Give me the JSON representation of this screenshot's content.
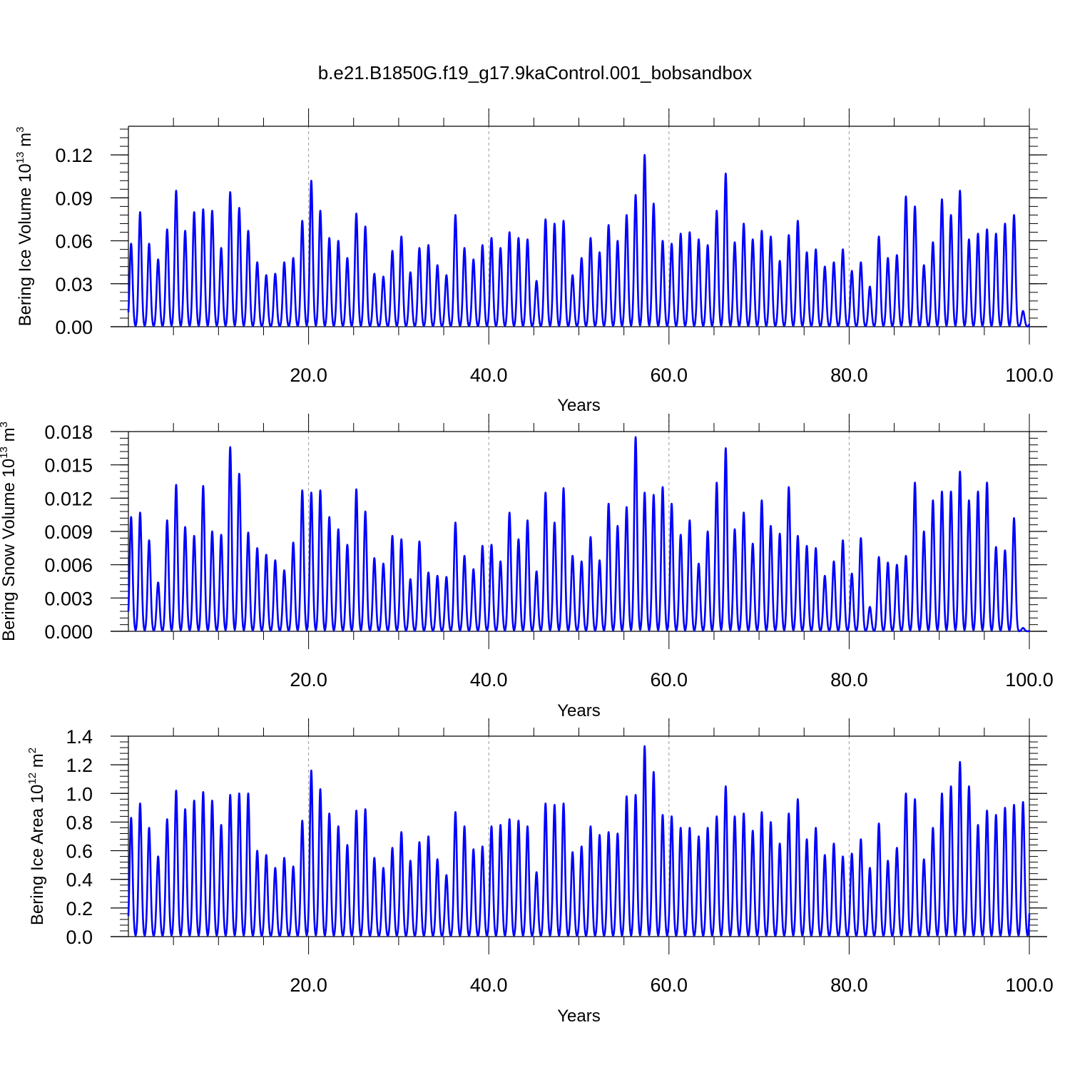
{
  "figure": {
    "title": "b.e21.B1850G.f19_g17.9kaControl.001_bobsandbox",
    "line_color": "#0000ff"
  },
  "chart_data": [
    {
      "type": "line",
      "ylabel": "Bering Ice Volume",
      "ylabel_unit_base": "10",
      "ylabel_unit_exp": "13",
      "ylabel_unit": "m",
      "ylabel_unit_sup": "3",
      "xlabel": "Years",
      "xlim": [
        0,
        100
      ],
      "ylim": [
        0,
        0.14
      ],
      "x_ticks": [
        "20.0",
        "40.0",
        "60.0",
        "80.0",
        "100.0"
      ],
      "y_ticks": [
        "0.00",
        "0.03",
        "0.06",
        "0.09",
        "0.12"
      ],
      "grid_x": [
        20,
        40,
        60,
        80
      ],
      "series": [
        {
          "x": [
            0.3,
            1.3,
            2.3,
            3.3,
            4.3,
            5.3,
            6.3,
            7.3,
            8.3,
            9.3,
            10.3,
            11.3,
            12.3,
            13.3,
            14.3,
            15.3,
            16.3,
            17.3,
            18.3,
            19.3,
            20.3,
            21.3,
            22.3,
            23.3,
            24.3,
            25.3,
            26.3,
            27.3,
            28.3,
            29.3,
            30.3,
            31.3,
            32.3,
            33.3,
            34.3,
            35.3,
            36.3,
            37.3,
            38.3,
            39.3,
            40.3,
            41.3,
            42.3,
            43.3,
            44.3,
            45.3,
            46.3,
            47.3,
            48.3,
            49.3,
            50.3,
            51.3,
            52.3,
            53.3,
            54.3,
            55.3,
            56.3,
            57.3,
            58.3,
            59.3,
            60.3,
            61.3,
            62.3,
            63.3,
            64.3,
            65.3,
            66.3,
            67.3,
            68.3,
            69.3,
            70.3,
            71.3,
            72.3,
            73.3,
            74.3,
            75.3,
            76.3,
            77.3,
            78.3,
            79.3,
            80.3,
            81.3,
            82.3,
            83.3,
            84.3,
            85.3,
            86.3,
            87.3,
            88.3,
            89.3,
            90.3,
            91.3,
            92.3,
            93.3,
            94.3,
            95.3,
            96.3,
            97.3,
            98.3,
            99.3
          ],
          "values": [
            0.058,
            0.08,
            0.058,
            0.047,
            0.068,
            0.095,
            0.067,
            0.08,
            0.082,
            0.081,
            0.055,
            0.094,
            0.083,
            0.067,
            0.045,
            0.036,
            0.037,
            0.045,
            0.048,
            0.074,
            0.102,
            0.081,
            0.062,
            0.06,
            0.048,
            0.079,
            0.07,
            0.037,
            0.035,
            0.053,
            0.063,
            0.038,
            0.055,
            0.057,
            0.043,
            0.036,
            0.078,
            0.055,
            0.047,
            0.057,
            0.062,
            0.055,
            0.066,
            0.062,
            0.061,
            0.032,
            0.075,
            0.072,
            0.074,
            0.036,
            0.048,
            0.062,
            0.052,
            0.071,
            0.06,
            0.078,
            0.092,
            0.12,
            0.086,
            0.06,
            0.058,
            0.065,
            0.066,
            0.061,
            0.057,
            0.081,
            0.107,
            0.059,
            0.072,
            0.061,
            0.067,
            0.063,
            0.046,
            0.064,
            0.074,
            0.052,
            0.054,
            0.042,
            0.045,
            0.054,
            0.039,
            0.045,
            0.028,
            0.063,
            0.048,
            0.05,
            0.091,
            0.084,
            0.043,
            0.059,
            0.089,
            0.078,
            0.095,
            0.061,
            0.065,
            0.068,
            0.065,
            0.072,
            0.078,
            0.011
          ]
        }
      ]
    },
    {
      "type": "line",
      "ylabel": "Bering Snow Volume",
      "ylabel_unit_base": "10",
      "ylabel_unit_exp": "13",
      "ylabel_unit": "m",
      "ylabel_unit_sup": "3",
      "xlabel": "Years",
      "xlim": [
        0,
        100
      ],
      "ylim": [
        0,
        0.018
      ],
      "x_ticks": [
        "20.0",
        "40.0",
        "60.0",
        "80.0",
        "100.0"
      ],
      "y_ticks": [
        "0.000",
        "0.003",
        "0.006",
        "0.009",
        "0.012",
        "0.015",
        "0.018"
      ],
      "grid_x": [
        20,
        40,
        60,
        80
      ],
      "series": [
        {
          "x": [
            0.3,
            1.3,
            2.3,
            3.3,
            4.3,
            5.3,
            6.3,
            7.3,
            8.3,
            9.3,
            10.3,
            11.3,
            12.3,
            13.3,
            14.3,
            15.3,
            16.3,
            17.3,
            18.3,
            19.3,
            20.3,
            21.3,
            22.3,
            23.3,
            24.3,
            25.3,
            26.3,
            27.3,
            28.3,
            29.3,
            30.3,
            31.3,
            32.3,
            33.3,
            34.3,
            35.3,
            36.3,
            37.3,
            38.3,
            39.3,
            40.3,
            41.3,
            42.3,
            43.3,
            44.3,
            45.3,
            46.3,
            47.3,
            48.3,
            49.3,
            50.3,
            51.3,
            52.3,
            53.3,
            54.3,
            55.3,
            56.3,
            57.3,
            58.3,
            59.3,
            60.3,
            61.3,
            62.3,
            63.3,
            64.3,
            65.3,
            66.3,
            67.3,
            68.3,
            69.3,
            70.3,
            71.3,
            72.3,
            73.3,
            74.3,
            75.3,
            76.3,
            77.3,
            78.3,
            79.3,
            80.3,
            81.3,
            82.3,
            83.3,
            84.3,
            85.3,
            86.3,
            87.3,
            88.3,
            89.3,
            90.3,
            91.3,
            92.3,
            93.3,
            94.3,
            95.3,
            96.3,
            97.3,
            98.3,
            99.3
          ],
          "values": [
            0.0103,
            0.0107,
            0.0082,
            0.0044,
            0.01,
            0.0132,
            0.0094,
            0.0086,
            0.0131,
            0.009,
            0.0087,
            0.0166,
            0.0142,
            0.0089,
            0.0075,
            0.0069,
            0.0064,
            0.0055,
            0.008,
            0.0127,
            0.0125,
            0.0127,
            0.0103,
            0.0092,
            0.0078,
            0.0128,
            0.0108,
            0.0066,
            0.0061,
            0.0086,
            0.0083,
            0.0047,
            0.0081,
            0.0053,
            0.005,
            0.0049,
            0.0098,
            0.0068,
            0.0056,
            0.0077,
            0.0078,
            0.0063,
            0.0107,
            0.0083,
            0.01,
            0.0054,
            0.0125,
            0.0098,
            0.0129,
            0.0068,
            0.0063,
            0.0085,
            0.0064,
            0.0115,
            0.0095,
            0.0112,
            0.0175,
            0.0125,
            0.0123,
            0.013,
            0.0115,
            0.0087,
            0.01,
            0.0061,
            0.009,
            0.0134,
            0.0165,
            0.0092,
            0.0107,
            0.0079,
            0.0118,
            0.0095,
            0.0088,
            0.013,
            0.0086,
            0.0077,
            0.0075,
            0.005,
            0.0063,
            0.0082,
            0.0052,
            0.0084,
            0.0022,
            0.0067,
            0.0062,
            0.006,
            0.0068,
            0.0134,
            0.009,
            0.0118,
            0.0126,
            0.0126,
            0.0144,
            0.0118,
            0.0126,
            0.0134,
            0.0076,
            0.0073,
            0.0102,
            0.0003
          ]
        }
      ]
    },
    {
      "type": "line",
      "ylabel": "Bering Ice Area",
      "ylabel_unit_base": "10",
      "ylabel_unit_exp": "12",
      "ylabel_unit": "m",
      "ylabel_unit_sup": "2",
      "xlabel": "Years",
      "xlim": [
        0,
        100
      ],
      "ylim": [
        0,
        1.4
      ],
      "x_ticks": [
        "20.0",
        "40.0",
        "60.0",
        "80.0",
        "100.0"
      ],
      "y_ticks": [
        "0.0",
        "0.2",
        "0.4",
        "0.6",
        "0.8",
        "1.0",
        "1.2",
        "1.4"
      ],
      "grid_x": [
        20,
        40,
        60,
        80
      ],
      "series": [
        {
          "x": [
            0.3,
            1.3,
            2.3,
            3.3,
            4.3,
            5.3,
            6.3,
            7.3,
            8.3,
            9.3,
            10.3,
            11.3,
            12.3,
            13.3,
            14.3,
            15.3,
            16.3,
            17.3,
            18.3,
            19.3,
            20.3,
            21.3,
            22.3,
            23.3,
            24.3,
            25.3,
            26.3,
            27.3,
            28.3,
            29.3,
            30.3,
            31.3,
            32.3,
            33.3,
            34.3,
            35.3,
            36.3,
            37.3,
            38.3,
            39.3,
            40.3,
            41.3,
            42.3,
            43.3,
            44.3,
            45.3,
            46.3,
            47.3,
            48.3,
            49.3,
            50.3,
            51.3,
            52.3,
            53.3,
            54.3,
            55.3,
            56.3,
            57.3,
            58.3,
            59.3,
            60.3,
            61.3,
            62.3,
            63.3,
            64.3,
            65.3,
            66.3,
            67.3,
            68.3,
            69.3,
            70.3,
            71.3,
            72.3,
            73.3,
            74.3,
            75.3,
            76.3,
            77.3,
            78.3,
            79.3,
            80.3,
            81.3,
            82.3,
            83.3,
            84.3,
            85.3,
            86.3,
            87.3,
            88.3,
            89.3,
            90.3,
            91.3,
            92.3,
            93.3,
            94.3,
            95.3,
            96.3,
            97.3,
            98.3,
            99.3
          ],
          "values": [
            0.83,
            0.93,
            0.76,
            0.56,
            0.82,
            1.02,
            0.89,
            0.95,
            1.01,
            0.95,
            0.78,
            0.99,
            1.0,
            1.0,
            0.6,
            0.57,
            0.48,
            0.55,
            0.49,
            0.81,
            1.16,
            1.03,
            0.86,
            0.77,
            0.64,
            0.88,
            0.89,
            0.55,
            0.48,
            0.62,
            0.73,
            0.53,
            0.66,
            0.7,
            0.54,
            0.43,
            0.87,
            0.77,
            0.61,
            0.63,
            0.77,
            0.78,
            0.82,
            0.81,
            0.77,
            0.45,
            0.93,
            0.92,
            0.93,
            0.59,
            0.63,
            0.77,
            0.71,
            0.73,
            0.72,
            0.98,
            0.99,
            1.33,
            1.15,
            0.85,
            0.84,
            0.76,
            0.76,
            0.7,
            0.76,
            0.84,
            1.05,
            0.84,
            0.86,
            0.74,
            0.87,
            0.8,
            0.65,
            0.86,
            0.96,
            0.68,
            0.76,
            0.57,
            0.65,
            0.56,
            0.58,
            0.68,
            0.48,
            0.79,
            0.53,
            0.62,
            1.0,
            0.96,
            0.54,
            0.76,
            1.0,
            1.05,
            1.22,
            1.05,
            0.78,
            0.88,
            0.85,
            0.9,
            0.92,
            0.94
          ]
        }
      ]
    }
  ]
}
